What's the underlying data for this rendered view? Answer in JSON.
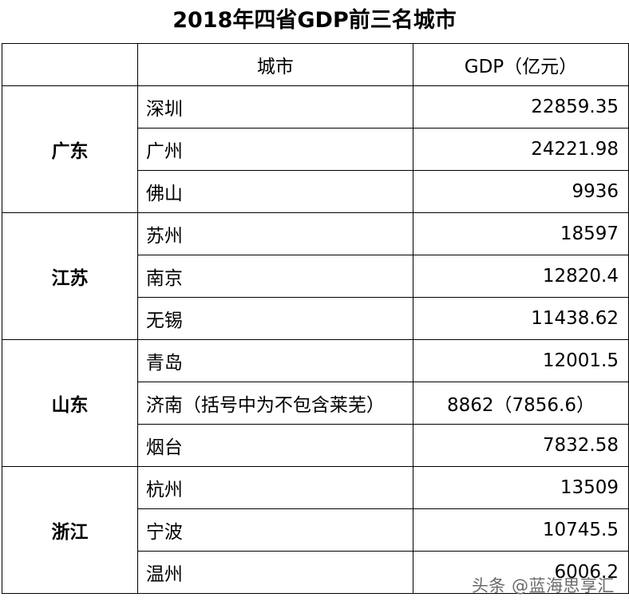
{
  "title": "2018年四省GDP前三名城市",
  "header": {
    "province": "",
    "city": "城市",
    "gdp": "GDP（亿元）"
  },
  "provinces": [
    {
      "name": "广东",
      "cities": [
        {
          "city": "深圳",
          "gdp": "22859.35"
        },
        {
          "city": "广州",
          "gdp": "24221.98"
        },
        {
          "city": "佛山",
          "gdp": "9936"
        }
      ]
    },
    {
      "name": "江苏",
      "cities": [
        {
          "city": "苏州",
          "gdp": "18597"
        },
        {
          "city": "南京",
          "gdp": "12820.4"
        },
        {
          "city": "无锡",
          "gdp": "11438.62"
        }
      ]
    },
    {
      "name": "山东",
      "cities": [
        {
          "city": "青岛",
          "gdp": "12001.5"
        },
        {
          "city": "济南（括号中为不包含莱芜）",
          "gdp": "8862（7856.6）"
        },
        {
          "city": "烟台",
          "gdp": "7832.58"
        }
      ]
    },
    {
      "name": "浙江",
      "cities": [
        {
          "city": "杭州",
          "gdp": "13509"
        },
        {
          "city": "宁波",
          "gdp": "10745.5"
        },
        {
          "city": "温州",
          "gdp": "6006.2"
        }
      ]
    }
  ],
  "watermark": "头条 @蓝海思享汇"
}
